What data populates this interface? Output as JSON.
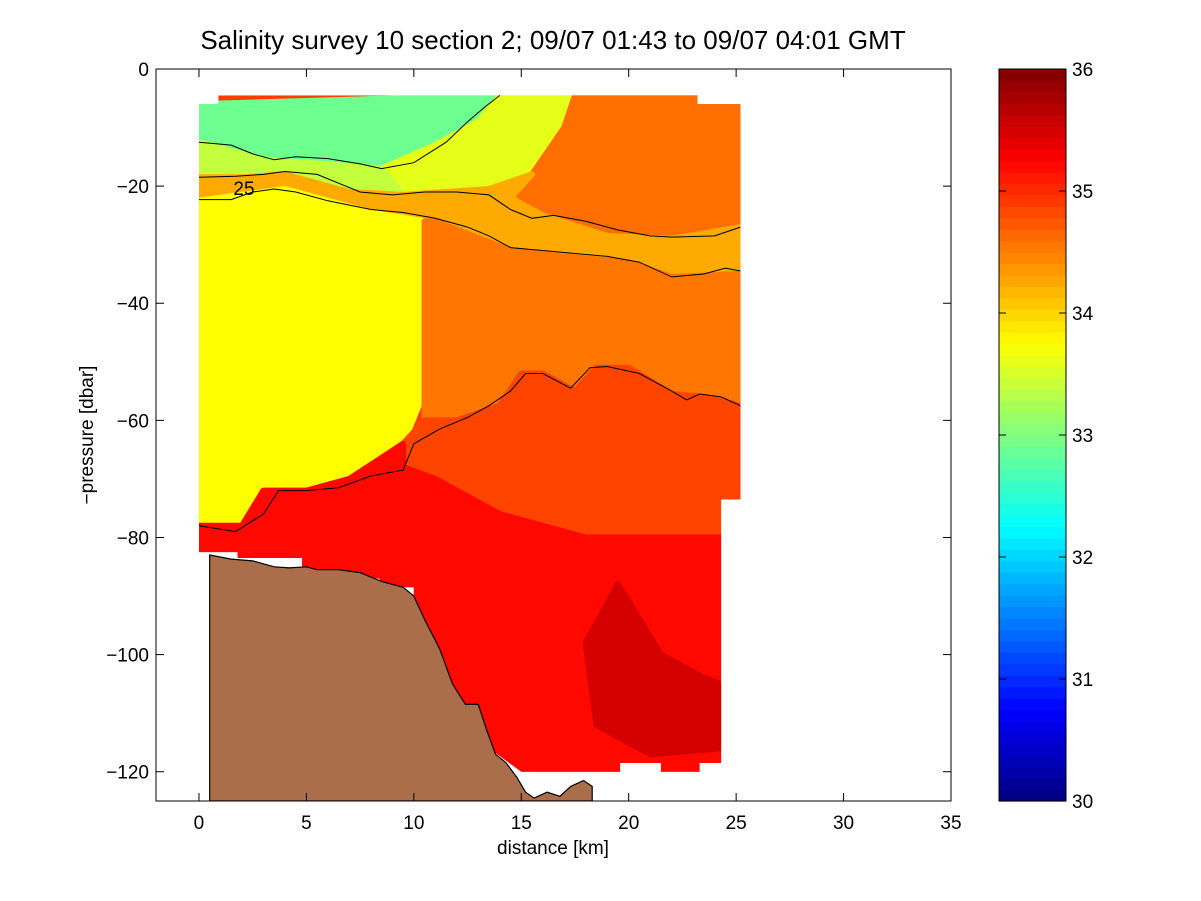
{
  "chart_data": {
    "type": "heatmap",
    "title": "Salinity survey 10 section 2; 09/07 01:43 to 09/07 04:01 GMT",
    "xlabel": "distance [km]",
    "ylabel": "−pressure [dbar]",
    "xlim": [
      -2,
      35
    ],
    "ylim": [
      -125,
      0
    ],
    "xticks": [
      0,
      5,
      10,
      15,
      20,
      25,
      30,
      35
    ],
    "yticks": [
      0,
      -20,
      -40,
      -60,
      -80,
      -100,
      -120
    ],
    "xtick_labels": [
      "0",
      "5",
      "10",
      "15",
      "20",
      "25",
      "30",
      "35"
    ],
    "ytick_labels": [
      "0",
      "−20",
      "−40",
      "−60",
      "−80",
      "−100",
      "−120"
    ],
    "grid": false,
    "colorbar": {
      "range": [
        30,
        36
      ],
      "ticks": [
        30,
        31,
        32,
        33,
        34,
        35,
        36
      ],
      "tick_labels": [
        "30",
        "31",
        "32",
        "33",
        "34",
        "35",
        "36"
      ],
      "colormap": "jet"
    },
    "contour_labels": [
      {
        "text": "25",
        "x": 1.6,
        "y": -20.5
      }
    ],
    "data_footprint": [
      [
        0,
        -6
      ],
      [
        0.9,
        -6
      ],
      [
        0.9,
        -4.5
      ],
      [
        23.2,
        -4.5
      ],
      [
        23.2,
        -6
      ],
      [
        25.2,
        -6
      ],
      [
        25.2,
        -73.5
      ],
      [
        24.3,
        -73.5
      ],
      [
        24.3,
        -118.5
      ],
      [
        23.3,
        -118.5
      ],
      [
        23.3,
        -120
      ],
      [
        21.5,
        -120
      ],
      [
        21.5,
        -118.5
      ],
      [
        19.6,
        -118.5
      ],
      [
        19.6,
        -120
      ],
      [
        15,
        -120
      ],
      [
        13.5,
        -116
      ],
      [
        12.2,
        -108
      ],
      [
        10,
        -92
      ],
      [
        10,
        -88.5
      ],
      [
        8.4,
        -88.5
      ],
      [
        8.4,
        -87
      ],
      [
        4.8,
        -87
      ],
      [
        4.8,
        -83.5
      ],
      [
        1.8,
        -83.5
      ],
      [
        1.8,
        -82.5
      ],
      [
        0,
        -82.5
      ]
    ],
    "salinity_regions": [
      {
        "points": [
          [
            0,
            -6
          ],
          [
            14,
            -4.5
          ],
          [
            13,
            -9
          ],
          [
            11,
            -13
          ],
          [
            8.5,
            -17
          ],
          [
            5,
            -16
          ],
          [
            3,
            -15.5
          ],
          [
            0,
            -12.5
          ]
        ],
        "salinity": 32.9
      },
      {
        "points": [
          [
            14,
            -4.5
          ],
          [
            17.5,
            -4.5
          ],
          [
            17,
            -10
          ],
          [
            15.5,
            -18
          ],
          [
            13.5,
            -20.5
          ],
          [
            11.5,
            -21
          ],
          [
            9.5,
            -21.5
          ],
          [
            8.5,
            -17
          ],
          [
            11,
            -13
          ],
          [
            13,
            -9
          ]
        ],
        "salinity": 33.6
      },
      {
        "points": [
          [
            0,
            -12.5
          ],
          [
            3,
            -15.5
          ],
          [
            5,
            -16
          ],
          [
            8.5,
            -17
          ],
          [
            9.5,
            -21.5
          ],
          [
            7,
            -21
          ],
          [
            4,
            -18
          ],
          [
            2,
            -18.5
          ],
          [
            0,
            -18.5
          ]
        ],
        "salinity": 33.4
      },
      {
        "points": [
          [
            17.5,
            -4.5
          ],
          [
            23.2,
            -4.5
          ],
          [
            25.2,
            -6
          ],
          [
            25.2,
            -27
          ],
          [
            22,
            -29
          ],
          [
            19,
            -28.5
          ],
          [
            16,
            -25
          ],
          [
            14.5,
            -22
          ],
          [
            15.5,
            -18
          ],
          [
            17,
            -10
          ]
        ],
        "salinity": 34.6
      },
      {
        "points": [
          [
            0,
            -18.5
          ],
          [
            2,
            -18.5
          ],
          [
            4,
            -18
          ],
          [
            7,
            -21
          ],
          [
            9.5,
            -21.5
          ],
          [
            11.5,
            -21
          ],
          [
            13.5,
            -20.5
          ],
          [
            15.5,
            -18
          ],
          [
            14.5,
            -22
          ],
          [
            16,
            -25
          ],
          [
            19,
            -28.5
          ],
          [
            22,
            -29
          ],
          [
            25.2,
            -27
          ],
          [
            25.2,
            -35
          ],
          [
            22,
            -35.5
          ],
          [
            20,
            -33
          ],
          [
            17,
            -32
          ],
          [
            14.5,
            -31
          ],
          [
            11,
            -26
          ],
          [
            8,
            -24.5
          ],
          [
            4,
            -20.5
          ],
          [
            2,
            -21.5
          ],
          [
            0,
            -22.5
          ]
        ],
        "salinity": 34.25
      },
      {
        "points": [
          [
            0,
            -22.5
          ],
          [
            2,
            -21.5
          ],
          [
            4,
            -20.5
          ],
          [
            8,
            -24.5
          ],
          [
            10.5,
            -26
          ],
          [
            10.5,
            -55
          ],
          [
            9.5,
            -64
          ],
          [
            7,
            -70
          ],
          [
            5,
            -72
          ],
          [
            3,
            -72
          ],
          [
            2,
            -78
          ],
          [
            0,
            -78
          ]
        ],
        "salinity": 33.75
      },
      {
        "points": [
          [
            10.5,
            -26
          ],
          [
            11,
            -26
          ],
          [
            14.5,
            -31
          ],
          [
            17,
            -32
          ],
          [
            20,
            -33
          ],
          [
            22,
            -35.5
          ],
          [
            25.2,
            -35
          ],
          [
            25.2,
            -57.5
          ],
          [
            23.5,
            -56
          ],
          [
            22,
            -55.5
          ],
          [
            20,
            -51
          ],
          [
            18.5,
            -51
          ],
          [
            17.5,
            -55
          ],
          [
            16,
            -52
          ],
          [
            15,
            -52
          ],
          [
            14,
            -57.5
          ],
          [
            12,
            -60
          ],
          [
            10.5,
            -60
          ]
        ],
        "salinity": 34.55
      },
      {
        "points": [
          [
            10.5,
            -60
          ],
          [
            12,
            -60
          ],
          [
            14,
            -57.5
          ],
          [
            15,
            -52
          ],
          [
            16,
            -52
          ],
          [
            17.5,
            -55
          ],
          [
            18.5,
            -51
          ],
          [
            20,
            -51
          ],
          [
            22,
            -55.5
          ],
          [
            23.5,
            -56
          ],
          [
            25.2,
            -57.5
          ],
          [
            25.2,
            -73.5
          ],
          [
            24.3,
            -73.5
          ],
          [
            24.3,
            -80
          ],
          [
            18,
            -80
          ],
          [
            14,
            -76
          ],
          [
            11,
            -70
          ],
          [
            9.5,
            -68
          ],
          [
            9.5,
            -64
          ]
        ],
        "salinity": 34.85
      },
      {
        "points": [
          [
            0,
            -78
          ],
          [
            2,
            -78
          ],
          [
            3,
            -72
          ],
          [
            5,
            -72
          ],
          [
            7,
            -70
          ],
          [
            9.5,
            -64
          ],
          [
            9.5,
            -68
          ],
          [
            11,
            -70
          ],
          [
            14,
            -76
          ],
          [
            18,
            -80
          ],
          [
            24.3,
            -80
          ],
          [
            24.3,
            -118.5
          ],
          [
            23.3,
            -118.5
          ],
          [
            23.3,
            -120
          ],
          [
            21.5,
            -120
          ],
          [
            21.5,
            -118.5
          ],
          [
            19.6,
            -118.5
          ],
          [
            19.6,
            -120
          ],
          [
            15,
            -120
          ],
          [
            13.5,
            -116
          ],
          [
            12.2,
            -108
          ],
          [
            10,
            -92
          ],
          [
            10,
            -88.5
          ],
          [
            8.4,
            -88.5
          ],
          [
            8.4,
            -87
          ],
          [
            4.8,
            -87
          ],
          [
            4.8,
            -83.5
          ],
          [
            1.8,
            -83.5
          ],
          [
            1.8,
            -82.5
          ],
          [
            0,
            -82.5
          ]
        ],
        "salinity": 35.2
      },
      {
        "points": [
          [
            19.5,
            -88
          ],
          [
            21.5,
            -100
          ],
          [
            23.5,
            -104
          ],
          [
            24.3,
            -105
          ],
          [
            24.3,
            -116
          ],
          [
            21,
            -117
          ],
          [
            18.5,
            -112
          ],
          [
            18,
            -98
          ]
        ],
        "salinity": 35.5
      }
    ],
    "contours": [
      {
        "points": [
          [
            0,
            -12.5
          ],
          [
            1.5,
            -13
          ],
          [
            2.5,
            -14.5
          ],
          [
            3.5,
            -15.5
          ],
          [
            4.5,
            -15
          ],
          [
            6,
            -15.3
          ],
          [
            7.5,
            -16.2
          ],
          [
            8.5,
            -17
          ],
          [
            10,
            -16
          ],
          [
            11.5,
            -12.5
          ],
          [
            12.5,
            -9
          ],
          [
            13.3,
            -6.5
          ],
          [
            14,
            -4.5
          ]
        ]
      },
      {
        "points": [
          [
            0,
            -18.5
          ],
          [
            1.7,
            -18.3
          ],
          [
            3,
            -18
          ],
          [
            4,
            -17.5
          ],
          [
            5.5,
            -18
          ],
          [
            6.5,
            -19.5
          ],
          [
            7.5,
            -21
          ],
          [
            9,
            -21.5
          ],
          [
            10.5,
            -21
          ],
          [
            12,
            -21
          ],
          [
            13.5,
            -21.5
          ],
          [
            14.5,
            -24
          ],
          [
            15.5,
            -25.5
          ],
          [
            16.5,
            -25
          ],
          [
            18,
            -26
          ],
          [
            19.5,
            -27.5
          ],
          [
            21,
            -28.5
          ],
          [
            22,
            -28.7
          ],
          [
            24,
            -28.5
          ],
          [
            25.2,
            -27
          ]
        ]
      },
      {
        "points": [
          [
            0,
            -22.3
          ],
          [
            1.5,
            -22.3
          ],
          [
            2.5,
            -21
          ],
          [
            3.5,
            -20.5
          ],
          [
            4.5,
            -21
          ],
          [
            6,
            -22.5
          ],
          [
            8,
            -24
          ],
          [
            9.5,
            -24.5
          ],
          [
            11,
            -25.5
          ],
          [
            12.5,
            -27
          ],
          [
            13.5,
            -28.5
          ],
          [
            14.5,
            -30.5
          ],
          [
            16,
            -31
          ],
          [
            17.5,
            -31.5
          ],
          [
            19,
            -32
          ],
          [
            20.5,
            -33
          ],
          [
            22,
            -35.5
          ],
          [
            23.5,
            -35
          ],
          [
            24.5,
            -34
          ],
          [
            25.2,
            -34.5
          ]
        ]
      },
      {
        "points": [
          [
            0,
            -78
          ],
          [
            1.7,
            -79
          ],
          [
            3,
            -76
          ],
          [
            3.7,
            -72
          ],
          [
            5,
            -72
          ],
          [
            6.5,
            -71.5
          ],
          [
            8,
            -69.5
          ],
          [
            9.5,
            -68.5
          ],
          [
            10,
            -64
          ],
          [
            11.2,
            -61.5
          ],
          [
            12.5,
            -59.5
          ],
          [
            13.5,
            -57.5
          ],
          [
            14.5,
            -55
          ],
          [
            15.2,
            -52
          ],
          [
            16,
            -52
          ],
          [
            17.3,
            -54.5
          ],
          [
            18.2,
            -51
          ],
          [
            19,
            -50.8
          ],
          [
            20.5,
            -52
          ],
          [
            22,
            -55
          ],
          [
            22.7,
            -56.5
          ],
          [
            23.3,
            -55.5
          ],
          [
            24.3,
            -56
          ],
          [
            25.2,
            -57.5
          ]
        ]
      }
    ],
    "seabed": [
      [
        0.5,
        -83
      ],
      [
        1.5,
        -83.7
      ],
      [
        2.5,
        -84
      ],
      [
        3.5,
        -85
      ],
      [
        4.2,
        -85.2
      ],
      [
        5,
        -85
      ],
      [
        5.5,
        -85.5
      ],
      [
        6.5,
        -85.5
      ],
      [
        7.5,
        -86
      ],
      [
        8.5,
        -87.5
      ],
      [
        9.5,
        -88.5
      ],
      [
        10,
        -90
      ],
      [
        10.5,
        -94
      ],
      [
        11.2,
        -99
      ],
      [
        11.8,
        -105
      ],
      [
        12.4,
        -108.5
      ],
      [
        13,
        -108.5
      ],
      [
        13.4,
        -113
      ],
      [
        13.8,
        -117
      ],
      [
        14.3,
        -118.5
      ],
      [
        14.8,
        -121
      ],
      [
        15.2,
        -123.5
      ],
      [
        15.6,
        -124.5
      ],
      [
        16.2,
        -123.5
      ],
      [
        16.8,
        -124.2
      ],
      [
        17.3,
        -122.5
      ],
      [
        17.9,
        -121.5
      ],
      [
        18.3,
        -122.5
      ],
      [
        18.3,
        -125
      ]
    ],
    "seabed_color": "#aa6e4a",
    "background_color": "#ffffff"
  }
}
